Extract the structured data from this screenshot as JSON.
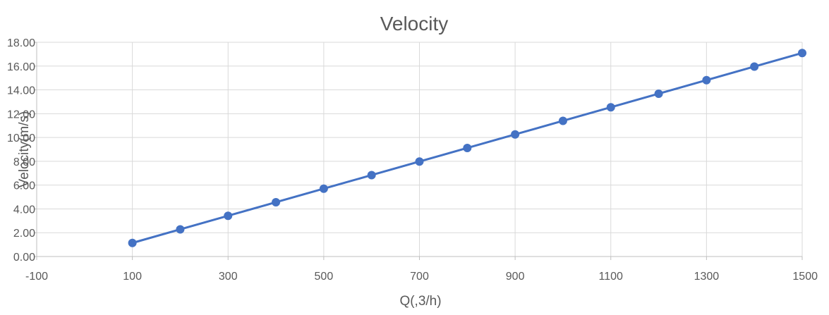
{
  "chart_data": {
    "type": "line",
    "title": "Velocity",
    "xlabel": "Q(,3/h)",
    "ylabel": "Velocity(m/s)",
    "xlim": [
      -100,
      1500
    ],
    "ylim": [
      0,
      18
    ],
    "x_ticks": [
      "-100",
      "100",
      "300",
      "500",
      "700",
      "900",
      "1100",
      "1300",
      "1500"
    ],
    "y_ticks": [
      "0.00",
      "2.00",
      "4.00",
      "6.00",
      "8.00",
      "10.00",
      "12.00",
      "14.00",
      "16.00",
      "18.00"
    ],
    "grid": true,
    "legend": "none",
    "series": [
      {
        "color": "#4472c4",
        "x": [
          100,
          200,
          300,
          400,
          500,
          600,
          700,
          800,
          900,
          1000,
          1100,
          1200,
          1300,
          1400,
          1500
        ],
        "y": [
          1.14,
          2.28,
          3.42,
          4.56,
          5.7,
          6.84,
          7.98,
          9.12,
          10.26,
          11.4,
          12.54,
          13.68,
          14.82,
          15.96,
          17.1
        ]
      }
    ],
    "colors": {
      "grid": "#d9d9d9",
      "axis": "#bfbfbf",
      "text": "#595959"
    }
  }
}
